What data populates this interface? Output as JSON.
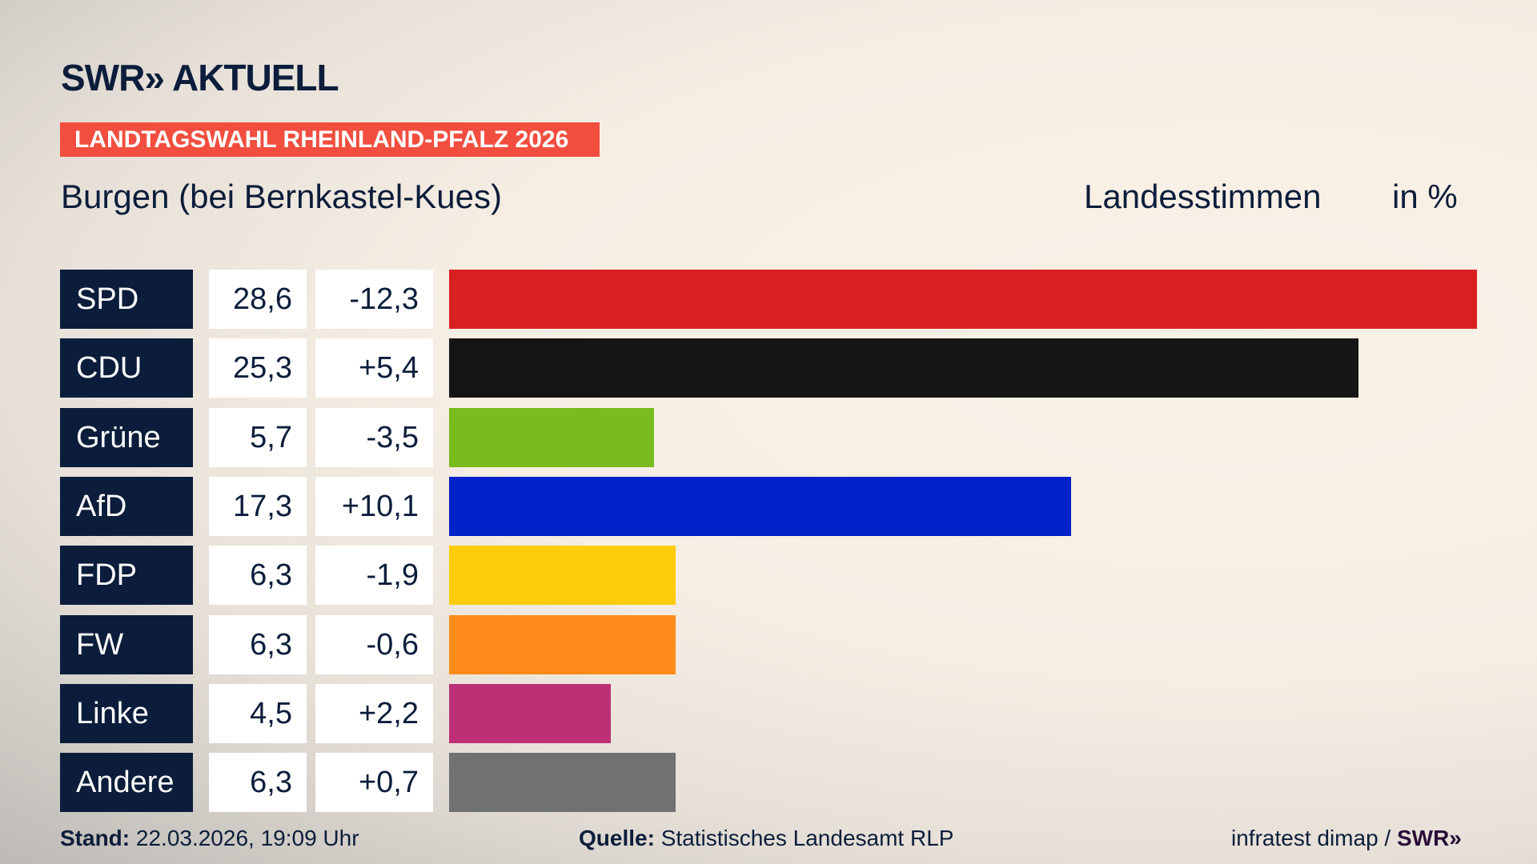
{
  "header": {
    "logo_text": "SWR» AKTUELL",
    "banner": "LANDTAGSWAHL RHEINLAND-PFALZ 2026",
    "location": "Burgen (bei Bernkastel-Kues)",
    "vote_type": "Landesstimmen",
    "unit": "in %"
  },
  "chart_data": {
    "type": "bar",
    "orientation": "horizontal",
    "grid": false,
    "categories": [
      "SPD",
      "CDU",
      "Grüne",
      "AfD",
      "FDP",
      "FW",
      "Linke",
      "Andere"
    ],
    "values": [
      28.6,
      25.3,
      5.7,
      17.3,
      6.3,
      6.3,
      4.5,
      6.3
    ],
    "value_labels": [
      "28,6",
      "25,3",
      "5,7",
      "17,3",
      "6,3",
      "6,3",
      "4,5",
      "6,3"
    ],
    "change_labels": [
      "-12,3",
      "+5,4",
      "-3,5",
      "+10,1",
      "-1,9",
      "-0,6",
      "+2,2",
      "+0,7"
    ],
    "changes": [
      -12.3,
      5.4,
      -3.5,
      10.1,
      -1.9,
      -0.6,
      2.2,
      0.7
    ],
    "colors": [
      "#d91f1f",
      "#151515",
      "#78bc1e",
      "#0022c8",
      "#ffcc0a",
      "#ff8c1a",
      "#bd3075",
      "#707173"
    ],
    "xlim": [
      0,
      28.6
    ]
  },
  "footer": {
    "stand_label": "Stand:",
    "stand_value": "22.03.2026, 19:09 Uhr",
    "source_label": "Quelle:",
    "source_value": "Statistisches Landesamt RLP",
    "credit": "infratest dimap /",
    "credit_logo": "SWR»"
  }
}
